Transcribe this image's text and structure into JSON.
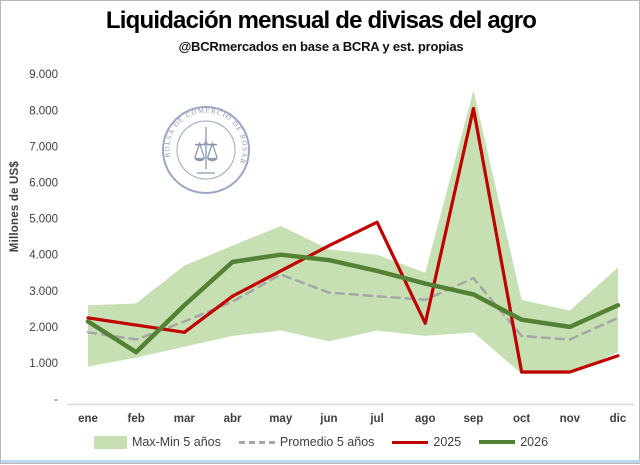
{
  "header": {
    "title": "Liquidación mensual de divisas del agro",
    "subtitle": "@BCRmercados en base a BCRA y est. propias"
  },
  "logo": {
    "text": "BOLSA DE COMERCIO DE ROSARIO",
    "color": "#77859f"
  },
  "chart_data": {
    "type": "area+line",
    "title": "Liquidación mensual de divisas del agro",
    "subtitle": "@BCRmercados en base a BCRA y est. propias",
    "xlabel": "",
    "ylabel": "Millones de US$",
    "ylim": [
      0,
      9000
    ],
    "grid": false,
    "legend_position": "bottom",
    "categories": [
      "ene",
      "feb",
      "mar",
      "abr",
      "may",
      "jun",
      "jul",
      "ago",
      "sep",
      "oct",
      "nov",
      "dic"
    ],
    "yticks": [
      {
        "value": 9000,
        "label": "9.000"
      },
      {
        "value": 8000,
        "label": "8.000"
      },
      {
        "value": 7000,
        "label": "7.000"
      },
      {
        "value": 6000,
        "label": "6.000"
      },
      {
        "value": 5000,
        "label": "5.000"
      },
      {
        "value": 4000,
        "label": "4.000"
      },
      {
        "value": 3000,
        "label": "3.000"
      },
      {
        "value": 2000,
        "label": "2.000"
      },
      {
        "value": 1000,
        "label": "1.000"
      },
      {
        "value": 0,
        "label": "-"
      }
    ],
    "series": [
      {
        "name": "Max-Min 5 años",
        "type": "band",
        "color": "#c6e0b4",
        "max": [
          2600,
          2650,
          3700,
          4250,
          4800,
          4150,
          4000,
          3500,
          8550,
          2750,
          2450,
          3650
        ],
        "min": [
          900,
          1150,
          1450,
          1750,
          1900,
          1600,
          1900,
          1750,
          1850,
          700,
          700,
          1300
        ]
      },
      {
        "name": "Promedio 5 años",
        "type": "line",
        "style": "dashed",
        "color": "#a6a6a6",
        "values": [
          1850,
          1650,
          2150,
          2700,
          3450,
          2950,
          2850,
          2750,
          3350,
          1750,
          1650,
          2250
        ]
      },
      {
        "name": "2025",
        "type": "line",
        "style": "solid",
        "color": "#c00000",
        "values": [
          2250,
          2050,
          1850,
          2850,
          3550,
          4250,
          4900,
          2100,
          8050,
          750,
          750,
          1200
        ]
      },
      {
        "name": "2026",
        "type": "line",
        "style": "solid",
        "color": "#548235",
        "values": [
          2150,
          1300,
          2600,
          3800,
          4000,
          3850,
          3550,
          3200,
          2900,
          2200,
          2000,
          2600
        ]
      }
    ]
  },
  "legend": {
    "items": [
      {
        "label": "Max-Min 5 años",
        "swatch": "area",
        "color": "#c6e0b4"
      },
      {
        "label": "Promedio 5 años",
        "swatch": "dash",
        "color": "#a6a6a6"
      },
      {
        "label": "2025",
        "swatch": "line25",
        "color": "#c00000"
      },
      {
        "label": "2026",
        "swatch": "line26",
        "color": "#548235"
      }
    ]
  }
}
